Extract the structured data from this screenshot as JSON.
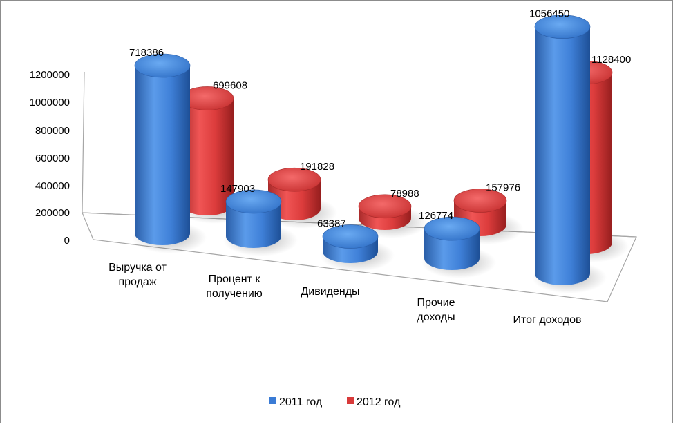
{
  "chart_data": {
    "type": "bar",
    "style": "3d-cylinder",
    "categories": [
      [
        "Выручка от",
        "продаж"
      ],
      [
        "Процент к",
        "получению"
      ],
      [
        "Дивиденды"
      ],
      [
        "Прочие",
        "доходы"
      ],
      [
        "Итог доходов"
      ]
    ],
    "series": [
      {
        "name": "2011 год",
        "color": "#3a7bd5",
        "values": [
          718386,
          147903,
          63387,
          126774,
          1056450
        ]
      },
      {
        "name": "2012 год",
        "color": "#d83a3a",
        "values": [
          699608,
          191828,
          78988,
          157976,
          1128400
        ]
      }
    ],
    "y_ticks": [
      "1200000",
      "1000000",
      "800000",
      "600000",
      "400000",
      "200000",
      "0"
    ],
    "ylim": [
      0,
      1200000
    ],
    "legend_position": "bottom",
    "grid": false
  }
}
